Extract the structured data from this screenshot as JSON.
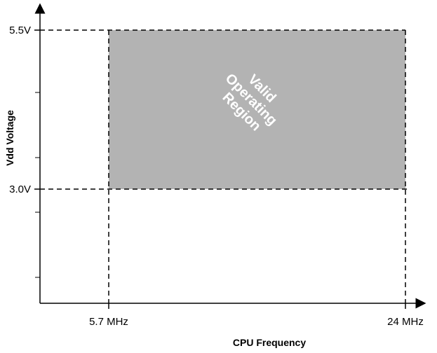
{
  "chart_data": {
    "type": "area",
    "x_axis_title": "CPU  Frequency",
    "y_axis_title": "Vdd Voltage",
    "x_ticks": [
      {
        "value": 5.7,
        "label": "5.7 MHz"
      },
      {
        "value": 24,
        "label": "24 MHz"
      }
    ],
    "y_ticks": [
      {
        "value": 5.5,
        "label": "5.5V"
      },
      {
        "value": 3.0,
        "label": "3.0V"
      }
    ],
    "region": {
      "x_range": [
        5.7,
        24
      ],
      "y_range": [
        3.0,
        5.5
      ],
      "label_lines": [
        "Valid",
        "Operating",
        "Region"
      ],
      "fill_color": "#b3b3b3",
      "label_color": "#ffffff"
    },
    "colors": {
      "axis": "#000000",
      "guides": "#000000"
    }
  }
}
